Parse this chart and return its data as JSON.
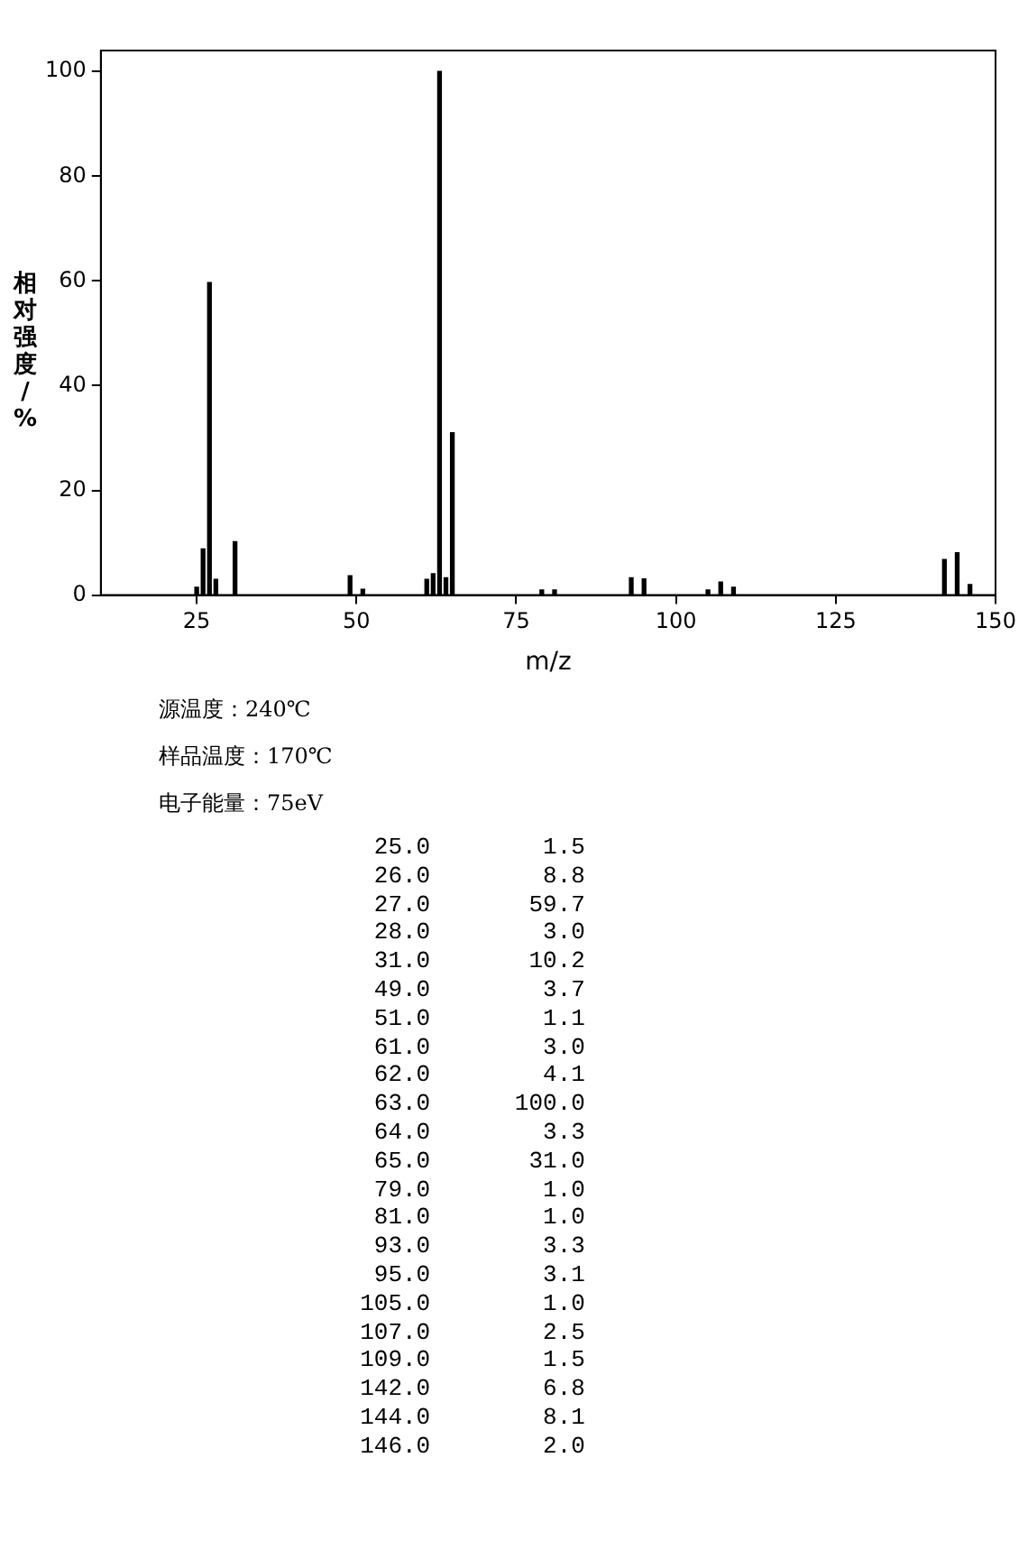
{
  "chart_data": {
    "type": "bar",
    "xlabel": "m/z",
    "ylabel": "相对强度/%",
    "color": "#000000",
    "x": [
      25,
      26,
      27,
      28,
      31,
      49,
      51,
      61,
      62,
      63,
      64,
      65,
      79,
      81,
      93,
      95,
      105,
      107,
      109,
      142,
      144,
      146
    ],
    "values": [
      1.5,
      8.8,
      59.7,
      3.0,
      10.2,
      3.7,
      1.1,
      3.0,
      4.1,
      100.0,
      3.3,
      31.0,
      1.0,
      1.0,
      3.3,
      3.1,
      1.0,
      2.5,
      1.5,
      6.8,
      8.1,
      2.0
    ],
    "xlim": [
      10,
      150
    ],
    "xticks": [
      25,
      50,
      75,
      100,
      125,
      150
    ],
    "ylim": [
      0,
      104
    ],
    "yticks": [
      0,
      20,
      40,
      60,
      80,
      100
    ],
    "grid": false,
    "legend": false,
    "annotations": [
      "源温度：240℃",
      "样品温度：170℃",
      "电子能量：75eV",
      "   25.0        1.5\n   26.0        8.8\n   27.0       59.7\n   28.0        3.0\n   31.0       10.2\n   49.0        3.7\n   51.0        1.1\n   61.0        3.0\n   62.0        4.1\n   63.0      100.0\n   64.0        3.3\n   65.0       31.0\n   79.0        1.0\n   81.0        1.0\n   93.0        3.3\n   95.0        3.1\n  105.0        1.0\n  107.0        2.5\n  109.0        1.5\n  142.0        6.8\n  144.0        8.1\n  146.0        2.0"
    ]
  }
}
